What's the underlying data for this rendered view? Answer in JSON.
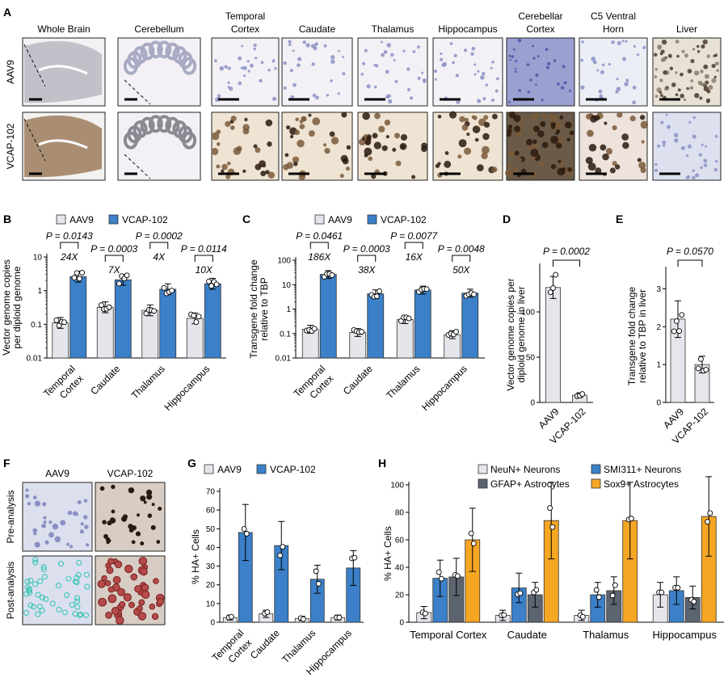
{
  "colors": {
    "aav9": "#e4e6ec",
    "vcap": "#3b80c8",
    "neun": "#e4e6ec",
    "smi": "#3b80c8",
    "gfap": "#5c6470",
    "sox9": "#f5a623",
    "tissue_blue": "#c9cbe0",
    "tissue_brown": "#9a7a5a"
  },
  "panel_letters": [
    "A",
    "B",
    "C",
    "D",
    "E",
    "F",
    "G",
    "H"
  ],
  "panel_a": {
    "columns": [
      "Whole Brain",
      "Cerebellum",
      "Temporal Cortex",
      "Caudate",
      "Thalamus",
      "Hippocampus",
      "Cerebellar Cortex",
      "C5 Ventral Horn",
      "Liver"
    ],
    "rows": [
      "AAV9",
      "VCAP-102"
    ]
  },
  "legend_bc": [
    "AAV9",
    "VCAP-102"
  ],
  "panel_f": {
    "columns": [
      "AAV9",
      "VCAP-102"
    ],
    "rows": [
      "Pre-analysis",
      "Post-analysis"
    ]
  },
  "chart_data": [
    {
      "panel": "B",
      "type": "bar",
      "scale": "log",
      "ylabel": "Vector genome copies per diploid genome",
      "ylim": [
        0.01,
        10
      ],
      "yticks": [
        "0.01",
        "0.1",
        "1",
        "10"
      ],
      "categories": [
        "Temporal Cortex",
        "Caudate",
        "Thalamus",
        "Hippocampus"
      ],
      "series": [
        {
          "name": "AAV9",
          "values": [
            0.11,
            0.32,
            0.26,
            0.15
          ]
        },
        {
          "name": "VCAP-102",
          "values": [
            2.6,
            2.1,
            1.1,
            1.6
          ]
        }
      ],
      "pvalues": [
        "P = 0.0143",
        "P = 0.0003",
        "P = 0.0002",
        "P = 0.0114"
      ],
      "folds": [
        "24X",
        "7X",
        "4X",
        "10X"
      ]
    },
    {
      "panel": "C",
      "type": "bar",
      "scale": "log",
      "ylabel": "Transgene fold change relative to TBP",
      "ylim": [
        0.01,
        100
      ],
      "yticks": [
        "0.01",
        "0.1",
        "1",
        "10",
        "100"
      ],
      "categories": [
        "Temporal Cortex",
        "Caudate",
        "Thalamus",
        "Hippocampus"
      ],
      "series": [
        {
          "name": "AAV9",
          "values": [
            0.15,
            0.11,
            0.37,
            0.09
          ]
        },
        {
          "name": "VCAP-102",
          "values": [
            26,
            4.2,
            6,
            4.5
          ]
        }
      ],
      "pvalues": [
        "P = 0.0461",
        "P = 0.0003",
        "P = 0.0077",
        "P = 0.0048"
      ],
      "folds": [
        "186X",
        "38X",
        "16X",
        "50X"
      ]
    },
    {
      "panel": "D",
      "type": "bar",
      "ylabel": "Vector genome copies per diploid genome in liver",
      "ylim": [
        0,
        150
      ],
      "yticks": [
        "0",
        "50",
        "100"
      ],
      "categories": [
        "AAV9",
        "VCAP-102"
      ],
      "values": [
        127,
        8
      ],
      "pvalue": "P = 0.0002"
    },
    {
      "panel": "E",
      "type": "bar",
      "ylabel": "Transgene fold change relative to TBP in liver",
      "ylim": [
        0,
        3.5
      ],
      "yticks": [
        "0",
        "1",
        "2",
        "3"
      ],
      "categories": [
        "AAV9",
        "VCAP-102"
      ],
      "values": [
        2.2,
        1.0
      ],
      "pvalue": "P = 0.0570"
    },
    {
      "panel": "G",
      "type": "bar",
      "ylabel": "% HA+ Cells",
      "ylim": [
        0,
        70
      ],
      "yticks": [
        "0",
        "10",
        "20",
        "30",
        "40",
        "50",
        "60",
        "70"
      ],
      "categories": [
        "Temporal Cortex",
        "Caudate",
        "Thalamus",
        "Hippocampus"
      ],
      "series": [
        {
          "name": "AAV9",
          "values": [
            2.5,
            4.5,
            2,
            2.5
          ]
        },
        {
          "name": "VCAP-102",
          "values": [
            48,
            41,
            23,
            29
          ]
        }
      ]
    },
    {
      "panel": "H",
      "type": "bar",
      "ylabel": "% HA+ Cells",
      "ylim": [
        0,
        100
      ],
      "yticks": [
        "0",
        "20",
        "40",
        "60",
        "80",
        "100"
      ],
      "categories": [
        "Temporal Cortex",
        "Caudate",
        "Thalamus",
        "Hippocampus"
      ],
      "series": [
        {
          "name": "NeuN+ Neurons",
          "values": [
            7,
            5,
            5,
            20
          ]
        },
        {
          "name": "SMI311+ Neurons",
          "values": [
            32,
            25,
            20,
            23
          ]
        },
        {
          "name": "GFAP+ Astrocytes",
          "values": [
            33,
            20,
            23,
            18
          ]
        },
        {
          "name": "Sox9+ Astrocytes",
          "values": [
            60,
            74,
            74,
            77
          ]
        }
      ]
    }
  ]
}
